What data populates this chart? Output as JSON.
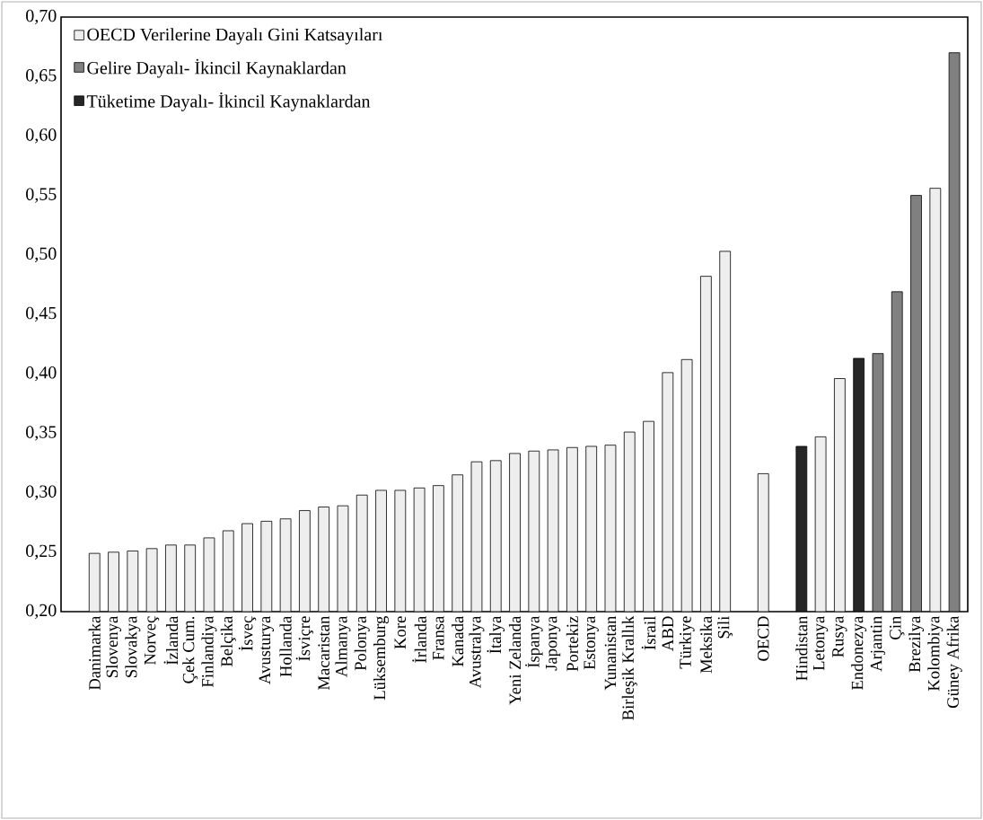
{
  "chart_data": {
    "type": "bar",
    "legend": "top left",
    "categories": [
      "Danimarka",
      "Slovenya",
      "Slovakya",
      "Norveç",
      "İzlanda",
      "Çek Cum.",
      "Finlandiya",
      "Belçika",
      "İsveç",
      "Avusturya",
      "Hollanda",
      "İsviçre",
      "Macaristan",
      "Almanya",
      "Polonya",
      "Lüksemburg",
      "Kore",
      "İrlanda",
      "Fransa",
      "Kanada",
      "Avustralya",
      "İtalya",
      "Yeni Zelanda",
      "İspanya",
      "Japonya",
      "Portekiz",
      "Estonya",
      "Yunanistan",
      "Birleşik Krallık",
      "İsrail",
      "ABD",
      "Türkiye",
      "Meksika",
      "Şili",
      null,
      "OECD",
      null,
      "Hindistan",
      "Letonya",
      "Rusya",
      "Endonezya",
      "Arjantin",
      "Çin",
      "Brezilya",
      "Kolombiya",
      "Güney Afrika"
    ],
    "series": [
      {
        "name": "OECD Verilerine Dayalı Gini Katsayıları",
        "color": "#eeeeee",
        "values": [
          0.249,
          0.25,
          0.251,
          0.253,
          0.256,
          0.256,
          0.262,
          0.268,
          0.274,
          0.276,
          0.278,
          0.285,
          0.288,
          0.289,
          0.298,
          0.302,
          0.302,
          0.304,
          0.306,
          0.315,
          0.326,
          0.327,
          0.333,
          0.335,
          0.336,
          0.338,
          0.339,
          0.34,
          0.351,
          0.36,
          0.401,
          0.412,
          0.482,
          0.503,
          null,
          0.316,
          null,
          null,
          0.347,
          0.396,
          null,
          null,
          null,
          null,
          0.556,
          null
        ]
      },
      {
        "name": "Gelire Dayalı- İkincil Kaynaklardan",
        "color": "#808080",
        "values": [
          null,
          null,
          null,
          null,
          null,
          null,
          null,
          null,
          null,
          null,
          null,
          null,
          null,
          null,
          null,
          null,
          null,
          null,
          null,
          null,
          null,
          null,
          null,
          null,
          null,
          null,
          null,
          null,
          null,
          null,
          null,
          null,
          null,
          null,
          null,
          null,
          null,
          null,
          null,
          null,
          null,
          0.417,
          0.469,
          0.55,
          null,
          0.67
        ]
      },
      {
        "name": "Tüketime Dayalı- İkincil Kaynaklardan",
        "color": "#262626",
        "values": [
          null,
          null,
          null,
          null,
          null,
          null,
          null,
          null,
          null,
          null,
          null,
          null,
          null,
          null,
          null,
          null,
          null,
          null,
          null,
          null,
          null,
          null,
          null,
          null,
          null,
          null,
          null,
          null,
          null,
          null,
          null,
          null,
          null,
          null,
          null,
          null,
          null,
          0.339,
          null,
          null,
          0.413,
          null,
          null,
          null,
          null,
          null
        ]
      }
    ],
    "ylim": [
      0.2,
      0.7
    ],
    "yticks": [
      {
        "value": 0.2,
        "label": "0,20"
      },
      {
        "value": 0.25,
        "label": "0,25"
      },
      {
        "value": 0.3,
        "label": "0,30"
      },
      {
        "value": 0.35,
        "label": "0,35"
      },
      {
        "value": 0.4,
        "label": "0,40"
      },
      {
        "value": 0.45,
        "label": "0,45"
      },
      {
        "value": 0.5,
        "label": "0,50"
      },
      {
        "value": 0.55,
        "label": "0,55"
      },
      {
        "value": 0.6,
        "label": "0,60"
      },
      {
        "value": 0.65,
        "label": "0,65"
      },
      {
        "value": 0.7,
        "label": "0,70"
      }
    ]
  }
}
